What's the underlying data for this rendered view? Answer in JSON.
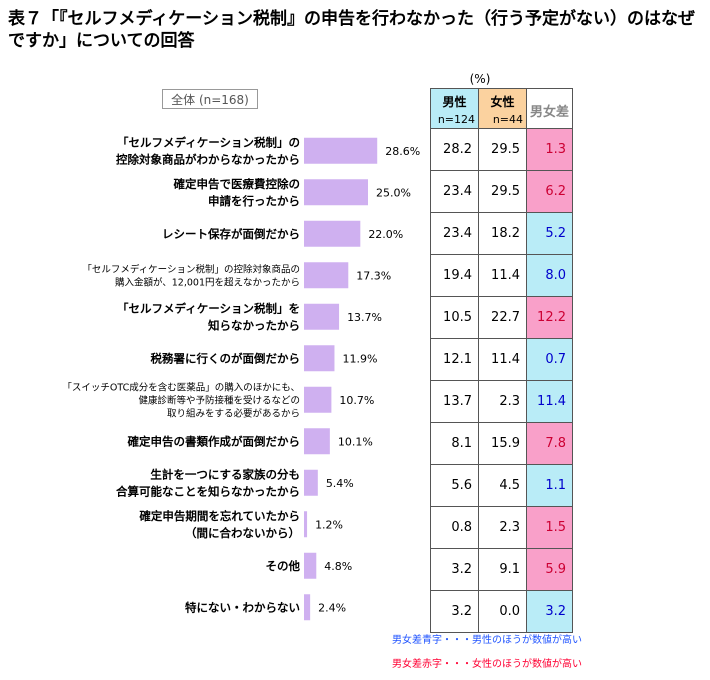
{
  "title_line1": "表７「『セルフメディケーション税制』の申告を行わなかった（行う予定がない）のはなぜ",
  "title_line2": "ですか」についての回答",
  "overall_label": "全体 (n=168)",
  "percent_unit": "(%)",
  "columns": {
    "male": "男性",
    "male_n": "n=124",
    "female": "女性",
    "female_n": "n=44",
    "diff": "男女差"
  },
  "colors": {
    "bar": "#cfb0f0",
    "male_header": "#b9ecf7",
    "female_header": "#fbd29f",
    "diff_blue_bg": "#b9ecf7",
    "diff_red_bg": "#f9a0c9",
    "diff_blue_text": "#0000cc",
    "diff_red_text": "#cc0033"
  },
  "chart_data": {
    "type": "bar",
    "orientation": "horizontal",
    "categories": [
      [
        "「セルフメディケーション税制」の",
        "控除対象商品がわからなかったから"
      ],
      [
        "確定申告で医療費控除の",
        "申請を行ったから"
      ],
      [
        "レシート保存が面倒だから"
      ],
      [
        "「セルフメディケーション税制」の控除対象商品の",
        "購入金額が、12,001円を超えなかったから"
      ],
      [
        "「セルフメディケーション税制」を",
        "知らなかったから"
      ],
      [
        "税務署に行くのが面倒だから"
      ],
      [
        "「スイッチOTC成分を含む医薬品」の購入のほかにも、",
        "健康診断等や予防接種を受けるなどの",
        "取り組みをする必要があるから"
      ],
      [
        "確定申告の書類作成が面倒だから"
      ],
      [
        "生計を一つにする家族の分も",
        "合算可能なことを知らなかったから"
      ],
      [
        "確定申告期間を忘れていたから",
        "（間に合わないから）"
      ],
      [
        "その他"
      ],
      [
        "特にない・わからない"
      ]
    ],
    "small_label_rows": [
      3,
      6
    ],
    "values": [
      28.6,
      25.0,
      22.0,
      17.3,
      13.7,
      11.9,
      10.7,
      10.1,
      5.4,
      1.2,
      4.8,
      2.4
    ],
    "value_labels": [
      "28.6%",
      "25.0%",
      "22.0%",
      "17.3%",
      "13.7%",
      "11.9%",
      "10.7%",
      "10.1%",
      "5.4%",
      "1.2%",
      "4.8%",
      "2.4%"
    ],
    "xlim": [
      0,
      100
    ]
  },
  "table": {
    "male": [
      "28.2",
      "23.4",
      "23.4",
      "19.4",
      "10.5",
      "12.1",
      "13.7",
      "8.1",
      "5.6",
      "0.8",
      "3.2",
      "3.2"
    ],
    "female": [
      "29.5",
      "29.5",
      "18.2",
      "11.4",
      "22.7",
      "11.4",
      "2.3",
      "15.9",
      "4.5",
      "2.3",
      "9.1",
      "0.0"
    ],
    "diff": [
      "1.3",
      "6.2",
      "5.2",
      "8.0",
      "12.2",
      "0.7",
      "11.4",
      "7.8",
      "1.1",
      "1.5",
      "5.9",
      "3.2"
    ],
    "diff_color": [
      "red",
      "red",
      "blue",
      "blue",
      "red",
      "blue",
      "blue",
      "red",
      "blue",
      "red",
      "red",
      "blue"
    ]
  },
  "notes": {
    "blue": "男女差青字・・・男性のほうが数値が高い",
    "red": "男女差赤字・・・女性のほうが数値が高い"
  }
}
